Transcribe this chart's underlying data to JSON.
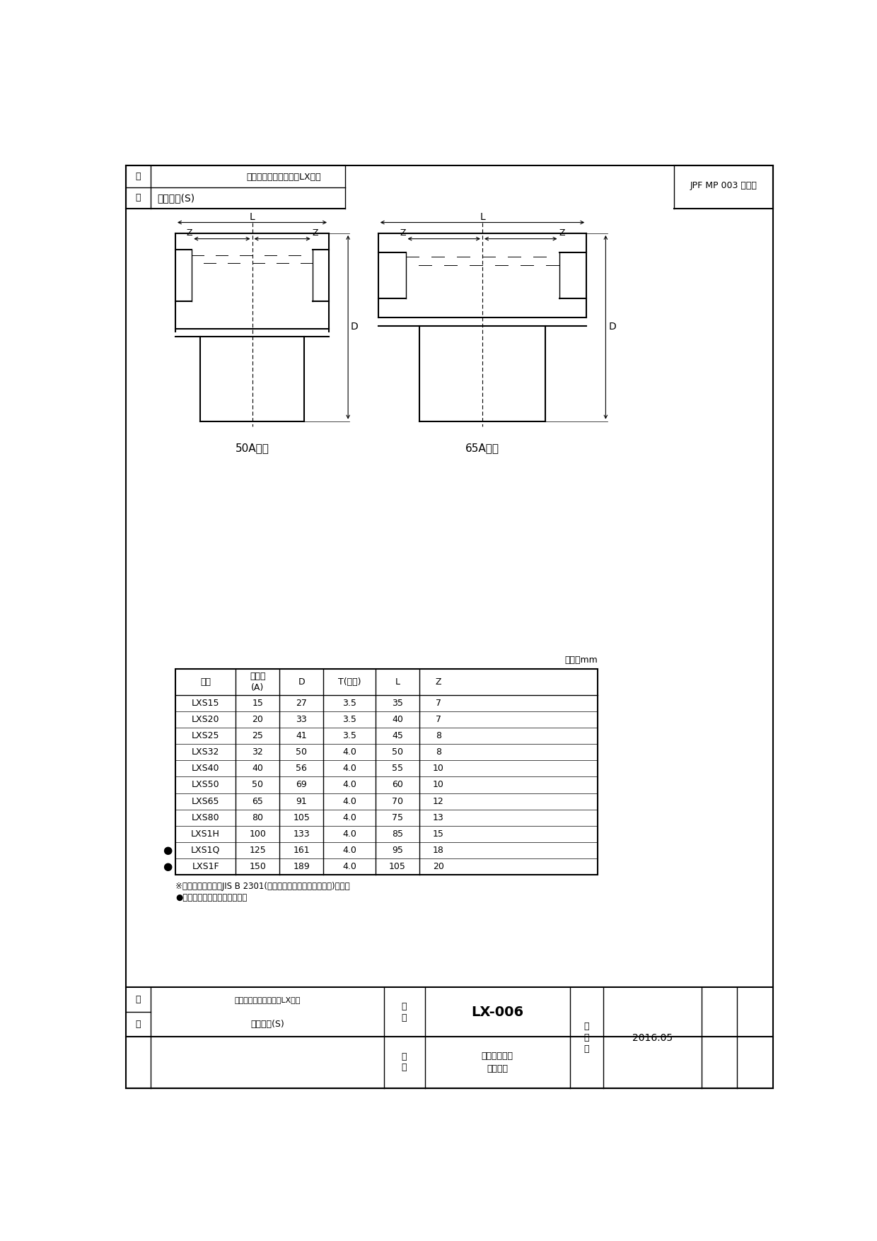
{
  "bg_color": "#ffffff",
  "border_color": "#000000",
  "header_product_name1": "エスロンエスロコートLX継手",
  "header_product_name2": "ソケット(S)",
  "header_standard": "JPF MP 003 規格品",
  "label_50A": "50A以下",
  "label_65A": "65A以上",
  "unit_label": "単位：mm",
  "table_headers": [
    "品番",
    "呼び径\n(A)",
    "D",
    "T(以上)",
    "L",
    "Z"
  ],
  "table_rows": [
    [
      "LXS15",
      "15",
      "27",
      "3.5",
      "35",
      "7",
      false
    ],
    [
      "LXS20",
      "20",
      "33",
      "3.5",
      "40",
      "7",
      false
    ],
    [
      "LXS25",
      "25",
      "41",
      "3.5",
      "45",
      "8",
      false
    ],
    [
      "LXS32",
      "32",
      "50",
      "4.0",
      "50",
      "8",
      false
    ],
    [
      "LXS40",
      "40",
      "56",
      "4.0",
      "55",
      "10",
      false
    ],
    [
      "LXS50",
      "50",
      "69",
      "4.0",
      "60",
      "10",
      false
    ],
    [
      "LXS65",
      "65",
      "91",
      "4.0",
      "70",
      "12",
      false
    ],
    [
      "LXS80",
      "80",
      "105",
      "4.0",
      "75",
      "13",
      false
    ],
    [
      "LXS1H",
      "100",
      "133",
      "4.0",
      "85",
      "15",
      false
    ],
    [
      "LXS1Q",
      "125",
      "161",
      "4.0",
      "95",
      "18",
      true
    ],
    [
      "LXS1F",
      "150",
      "189",
      "4.0",
      "105",
      "20",
      true
    ]
  ],
  "footnote1": "※継手本体の材質はJIS B 2301(ねじ込み式可鍛鉄鉄製管継手)です。",
  "footnote2": "●印は、メーカー規格品です。",
  "footer_name1": "エスロンエスロコートLX継手",
  "footer_name2": "ソケット(S)",
  "footer_fig_num": "LX-006",
  "footer_maker_name": "穏水化学工業\n株式会社",
  "footer_date": "2016.05",
  "char_hin": "品",
  "char_mei": "名",
  "char_zu": "図",
  "char_ban": "番",
  "char_sei": "製",
  "char_zu2": "図",
  "char_nen": "年",
  "char_tsuki": "月",
  "char_hi": "日"
}
